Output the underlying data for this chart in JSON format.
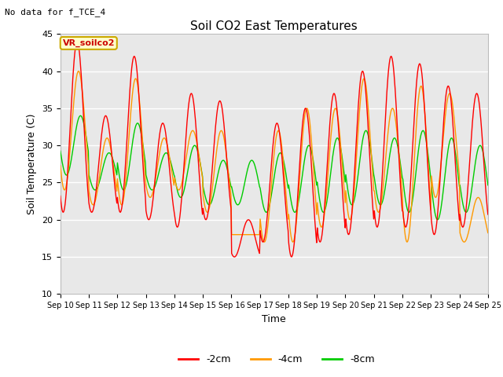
{
  "title": "Soil CO2 East Temperatures",
  "subtitle": "No data for f_TCE_4",
  "xlabel": "Time",
  "ylabel": "Soil Temperature (C)",
  "ylim": [
    10,
    45
  ],
  "line_colors": {
    "-2cm": "#ff0000",
    "-4cm": "#ff9900",
    "-8cm": "#00cc00"
  },
  "legend_label": "VR_soilco2",
  "xtick_labels": [
    "Sep 10",
    "Sep 11",
    "Sep 12",
    "Sep 13",
    "Sep 14",
    "Sep 15",
    "Sep 16",
    "Sep 17",
    "Sep 18",
    "Sep 19",
    "Sep 20",
    "Sep 21",
    "Sep 22",
    "Sep 23",
    "Sep 24",
    "Sep 25"
  ],
  "ytick_labels": [
    10,
    15,
    20,
    25,
    30,
    35,
    40,
    45
  ],
  "days": 15,
  "pts_per_day": 48,
  "temp_2cm_day_maxes": [
    44,
    34,
    42,
    33,
    37,
    36,
    20,
    33,
    35,
    37,
    40,
    42,
    41,
    38,
    37
  ],
  "temp_2cm_day_mins": [
    21,
    21,
    21,
    20,
    19,
    20,
    15,
    17,
    15,
    17,
    18,
    19,
    19,
    18,
    19
  ],
  "temp_4cm_day_maxes": [
    40,
    31,
    39,
    31,
    32,
    32,
    18,
    32,
    35,
    35,
    39,
    35,
    38,
    37,
    23
  ],
  "temp_4cm_day_mins": [
    24,
    22,
    22,
    23,
    24,
    21,
    18,
    17,
    17,
    19,
    20,
    21,
    17,
    23,
    17
  ],
  "temp_8cm_day_maxes": [
    34,
    29,
    33,
    29,
    30,
    28,
    28,
    29,
    30,
    31,
    32,
    31,
    32,
    31,
    30
  ],
  "temp_8cm_day_mins": [
    26,
    24,
    24,
    24,
    23,
    22,
    22,
    21,
    21,
    21,
    22,
    22,
    21,
    20,
    21
  ],
  "lag_2cm": 0.1,
  "lag_4cm": 0.15,
  "lag_8cm": 0.22,
  "noise": 0.0,
  "figwidth": 6.4,
  "figheight": 4.8,
  "dpi": 100
}
